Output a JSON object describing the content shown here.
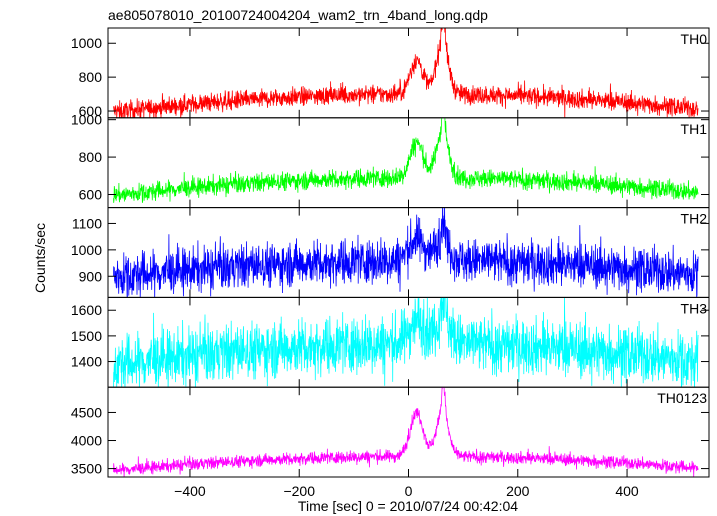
{
  "title": "ae805078010_20100724004204_wam2_trn_4band_long.qdp",
  "ylabel": "Counts/sec",
  "xlabel": "Time [sec] 0 = 2010/07/24 00:42:04",
  "chart_data": {
    "type": "line",
    "title": "ae805078010_20100724004204_wam2_trn_4band_long.qdp",
    "xlabel": "Time [sec] 0 = 2010/07/24 00:42:04",
    "ylabel": "Counts/sec",
    "xlim": [
      -550,
      550
    ],
    "data_x_range": [
      -540,
      530
    ],
    "x_ticks": [
      -400,
      -200,
      0,
      200,
      400
    ],
    "x_tick_labels": [
      "−400",
      "−200",
      "0",
      "200",
      "400"
    ],
    "grid": false,
    "panels": [
      {
        "name": "TH0",
        "color": "#ff0000",
        "ylim": [
          560,
          1090
        ],
        "y_ticks": [
          600,
          800,
          1000
        ],
        "y_tick_labels": [
          "600",
          "800",
          "1000"
        ],
        "baseline_edge": 600,
        "baseline_center": 700,
        "noise": 28,
        "spikes": 25,
        "peaks": [
          {
            "x": 15,
            "value": 900,
            "width": 12
          },
          {
            "x": 62,
            "value": 1000,
            "width": 11
          },
          {
            "x": 64,
            "value": 1080,
            "width": 3
          }
        ]
      },
      {
        "name": "TH1",
        "color": "#00ff00",
        "ylim": [
          530,
          1010
        ],
        "y_ticks": [
          600,
          800,
          1000
        ],
        "y_tick_labels": [
          "600",
          "800",
          "1000"
        ],
        "baseline_edge": 600,
        "baseline_center": 690,
        "noise": 25,
        "spikes": 22,
        "peaks": [
          {
            "x": 15,
            "value": 880,
            "width": 12
          },
          {
            "x": 62,
            "value": 930,
            "width": 11
          },
          {
            "x": 64,
            "value": 1000,
            "width": 3
          }
        ]
      },
      {
        "name": "TH2",
        "color": "#0000ff",
        "ylim": [
          820,
          1160
        ],
        "y_ticks": [
          900,
          1000,
          1100
        ],
        "y_tick_labels": [
          "900",
          "1000",
          "1100"
        ],
        "baseline_edge": 900,
        "baseline_center": 960,
        "noise": 42,
        "spikes": 35,
        "peaks": [
          {
            "x": 15,
            "value": 1040,
            "width": 14
          },
          {
            "x": 62,
            "value": 1040,
            "width": 13
          },
          {
            "x": 64,
            "value": 1150,
            "width": 3
          }
        ]
      },
      {
        "name": "TH3",
        "color": "#00ffff",
        "ylim": [
          1300,
          1650
        ],
        "y_ticks": [
          1400,
          1500,
          1600
        ],
        "y_tick_labels": [
          "1400",
          "1500",
          "1600"
        ],
        "baseline_edge": 1390,
        "baseline_center": 1470,
        "noise": 55,
        "spikes": 45,
        "peaks": [
          {
            "x": 15,
            "value": 1560,
            "width": 14
          },
          {
            "x": 62,
            "value": 1570,
            "width": 14
          },
          {
            "x": 64,
            "value": 1640,
            "width": 4
          }
        ]
      },
      {
        "name": "TH0123",
        "color": "#ff00ff",
        "ylim": [
          3350,
          4950
        ],
        "y_ticks": [
          3500,
          4000,
          4500
        ],
        "y_tick_labels": [
          "3500",
          "4000",
          "4500"
        ],
        "baseline_edge": 3480,
        "baseline_center": 3720,
        "noise": 55,
        "spikes": 60,
        "peaks": [
          {
            "x": 15,
            "value": 4500,
            "width": 12
          },
          {
            "x": 62,
            "value": 4500,
            "width": 11
          },
          {
            "x": 64,
            "value": 4900,
            "width": 3
          }
        ]
      }
    ]
  }
}
